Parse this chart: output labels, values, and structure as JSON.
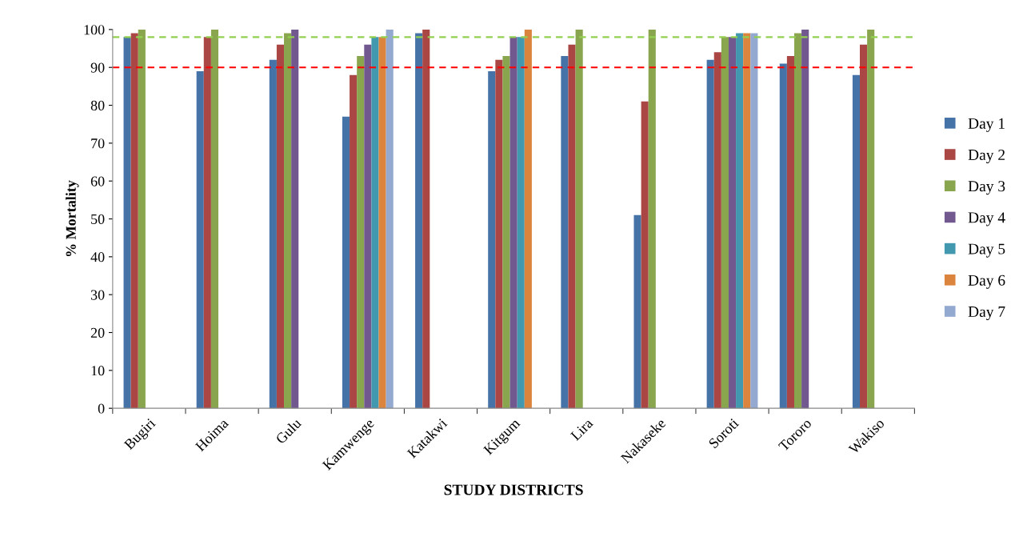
{
  "chart_data": {
    "type": "bar",
    "xlabel": "STUDY DISTRICTS",
    "ylabel": "% Mortality",
    "categories": [
      "Bugiri",
      "Hoima",
      "Gulu",
      "Kamwenge",
      "Katakwi",
      "Kitgum",
      "Lira",
      "Nakaseke",
      "Soroti",
      "Tororo",
      "Wakiso"
    ],
    "series": [
      {
        "name": "Day 1",
        "color": "#4572a7",
        "values": [
          98,
          89,
          92,
          77,
          99,
          89,
          93,
          51,
          92,
          91,
          88
        ]
      },
      {
        "name": "Day 2",
        "color": "#aa4643",
        "values": [
          99,
          98,
          96,
          88,
          100,
          92,
          96,
          81,
          94,
          93,
          96
        ]
      },
      {
        "name": "Day 3",
        "color": "#89a54e",
        "values": [
          100,
          100,
          99,
          93,
          null,
          93,
          100,
          100,
          98,
          99,
          100
        ]
      },
      {
        "name": "Day 4",
        "color": "#71588f",
        "values": [
          null,
          null,
          100,
          96,
          null,
          98,
          null,
          null,
          98,
          100,
          null
        ]
      },
      {
        "name": "Day 5",
        "color": "#4198af",
        "values": [
          null,
          null,
          null,
          98,
          null,
          98,
          null,
          null,
          99,
          null,
          null
        ]
      },
      {
        "name": "Day 6",
        "color": "#db843d",
        "values": [
          null,
          null,
          null,
          98,
          null,
          100,
          null,
          null,
          99,
          null,
          null
        ]
      },
      {
        "name": "Day 7",
        "color": "#93a9cf",
        "values": [
          null,
          null,
          null,
          100,
          null,
          null,
          null,
          null,
          99,
          null,
          null
        ]
      }
    ],
    "ylim": [
      0,
      100
    ],
    "yticks": [
      0,
      10,
      20,
      30,
      40,
      50,
      60,
      70,
      80,
      90,
      100
    ],
    "ref_lines": [
      {
        "axis": "y",
        "value": 98,
        "color": "#92d050",
        "line_style": "dashed"
      },
      {
        "axis": "y",
        "value": 90,
        "color": "#ff0000",
        "line_style": "dashed"
      }
    ],
    "grid": false,
    "legend": "right"
  }
}
